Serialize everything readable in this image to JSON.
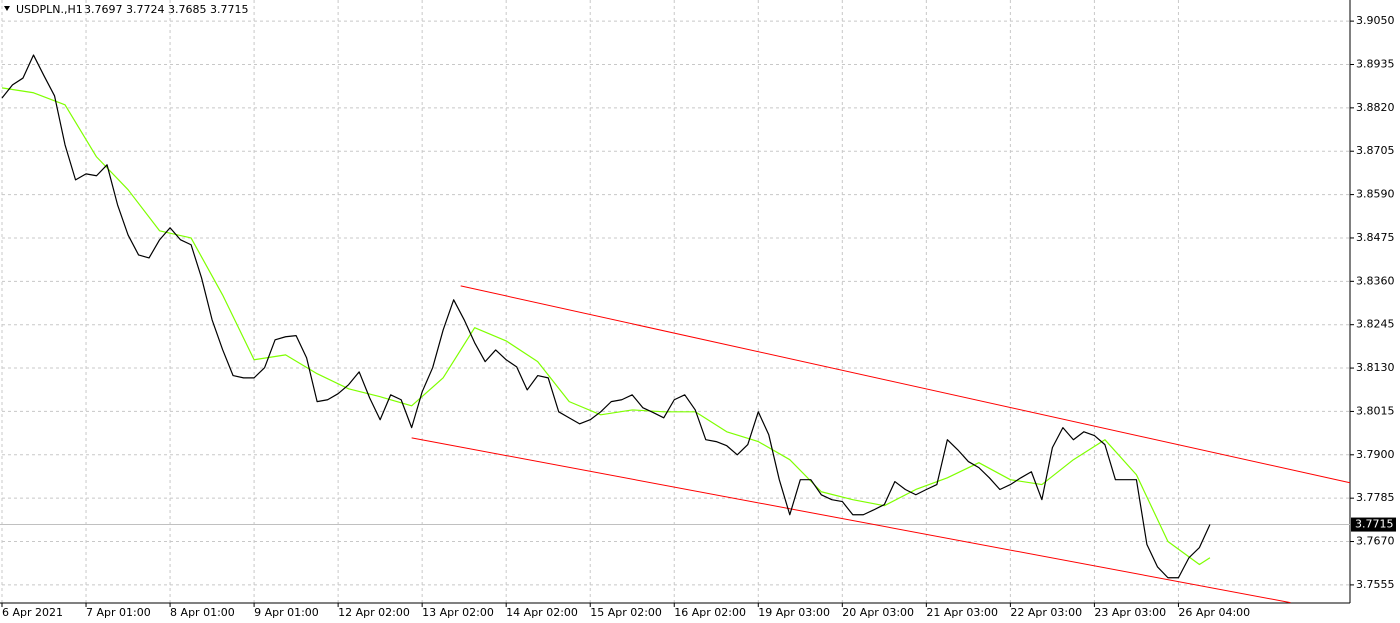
{
  "chart_data": {
    "type": "line",
    "title": "USDPLN.,H1",
    "last_bar": {
      "open": 3.7697,
      "high": 3.7724,
      "low": 3.7685,
      "close": 3.7715
    },
    "current_price": 3.7715,
    "grid": true,
    "xlim": [
      0,
      385
    ],
    "ylim": [
      3.7507,
      3.9106
    ],
    "xticks": [
      {
        "value": 0,
        "label": "6 Apr 2021"
      },
      {
        "value": 24,
        "label": "7 Apr 01:00"
      },
      {
        "value": 48,
        "label": "8 Apr 01:00"
      },
      {
        "value": 72,
        "label": "9 Apr 01:00"
      },
      {
        "value": 96,
        "label": "12 Apr 02:00"
      },
      {
        "value": 120,
        "label": "13 Apr 02:00"
      },
      {
        "value": 144,
        "label": "14 Apr 02:00"
      },
      {
        "value": 168,
        "label": "15 Apr 02:00"
      },
      {
        "value": 192,
        "label": "16 Apr 02:00"
      },
      {
        "value": 216,
        "label": "19 Apr 03:00"
      },
      {
        "value": 240,
        "label": "20 Apr 03:00"
      },
      {
        "value": 264,
        "label": "21 Apr 03:00"
      },
      {
        "value": 288,
        "label": "22 Apr 03:00"
      },
      {
        "value": 312,
        "label": "23 Apr 03:00"
      },
      {
        "value": 336,
        "label": "26 Apr 04:00"
      }
    ],
    "yticks": [
      {
        "value": 3.905,
        "label": "3.9050"
      },
      {
        "value": 3.8935,
        "label": "3.8935"
      },
      {
        "value": 3.882,
        "label": "3.8820"
      },
      {
        "value": 3.8705,
        "label": "3.8705"
      },
      {
        "value": 3.859,
        "label": "3.8590"
      },
      {
        "value": 3.8475,
        "label": "3.8475"
      },
      {
        "value": 3.836,
        "label": "3.8360"
      },
      {
        "value": 3.8245,
        "label": "3.8245"
      },
      {
        "value": 3.813,
        "label": "3.8130"
      },
      {
        "value": 3.8015,
        "label": "3.8015"
      },
      {
        "value": 3.79,
        "label": "3.7900"
      },
      {
        "value": 3.7785,
        "label": "3.7785"
      },
      {
        "value": 3.767,
        "label": "3.7670"
      },
      {
        "value": 3.7555,
        "label": "3.7555"
      }
    ],
    "series": [
      {
        "color": "#000000",
        "x": [
          0,
          3,
          6,
          9,
          12,
          15,
          18,
          21,
          24,
          27,
          30,
          33,
          36,
          39,
          42,
          45,
          48,
          51,
          54,
          57,
          60,
          63,
          66,
          69,
          72,
          75,
          78,
          81,
          84,
          87,
          90,
          93,
          96,
          99,
          102,
          105,
          108,
          111,
          114,
          117,
          120,
          123,
          126,
          129,
          132,
          135,
          138,
          141,
          144,
          147,
          150,
          153,
          156,
          159,
          162,
          165,
          168,
          171,
          174,
          177,
          180,
          183,
          186,
          189,
          192,
          195,
          198,
          201,
          204,
          207,
          210,
          213,
          216,
          219,
          222,
          225,
          228,
          231,
          234,
          237,
          240,
          243,
          246,
          249,
          252,
          255,
          258,
          261,
          264,
          267,
          270,
          273,
          276,
          279,
          282,
          285,
          288,
          291,
          294,
          297,
          300,
          303,
          306,
          309,
          312,
          315,
          318,
          321,
          324,
          327,
          330,
          333,
          336,
          339,
          342,
          345
        ],
        "values": [
          3.8846,
          3.8881,
          3.8899,
          3.896,
          3.8905,
          3.8852,
          3.8722,
          3.8629,
          3.8645,
          3.864,
          3.8669,
          3.8563,
          3.8483,
          3.843,
          3.8422,
          3.847,
          3.8502,
          3.847,
          3.8457,
          3.8369,
          3.8258,
          3.8179,
          3.811,
          3.8104,
          3.8104,
          3.8131,
          3.8205,
          3.8213,
          3.8216,
          3.8157,
          3.8041,
          3.8046,
          3.8062,
          3.8086,
          3.812,
          3.8051,
          3.7993,
          3.8059,
          3.8046,
          3.7972,
          3.8067,
          3.8131,
          3.8231,
          3.8311,
          3.8258,
          3.8197,
          3.8147,
          3.8178,
          3.8152,
          3.8133,
          3.8072,
          3.811,
          3.8104,
          3.8014,
          3.7998,
          3.7982,
          3.7993,
          3.8014,
          3.8041,
          3.8046,
          3.8059,
          3.8025,
          3.8012,
          3.7998,
          3.8046,
          3.8059,
          3.8019,
          3.794,
          3.7935,
          3.7924,
          3.79,
          3.7927,
          3.8014,
          3.7953,
          3.7834,
          3.7741,
          3.7834,
          3.7834,
          3.7794,
          3.7781,
          3.7776,
          3.7741,
          3.7741,
          3.7754,
          3.7768,
          3.7829,
          3.7808,
          3.7794,
          3.7808,
          3.7821,
          3.794,
          3.7913,
          3.7882,
          3.7866,
          3.7839,
          3.7808,
          3.7821,
          3.7839,
          3.7855,
          3.7781,
          3.7919,
          3.7972,
          3.794,
          3.7961,
          3.7951,
          3.7927,
          3.7834,
          3.7834,
          3.7834,
          3.7662,
          3.7603,
          3.7574,
          3.7574,
          3.7627,
          3.7654,
          3.7715
        ]
      },
      {
        "color": "#7fff00",
        "x": [
          0,
          9,
          18,
          27,
          36,
          45,
          54,
          63,
          72,
          81,
          90,
          99,
          108,
          117,
          126,
          135,
          144,
          153,
          162,
          171,
          180,
          189,
          198,
          207,
          216,
          225,
          234,
          243,
          252,
          261,
          270,
          279,
          288,
          297,
          306,
          315,
          324,
          333,
          342,
          345
        ],
        "values": [
          3.8873,
          3.886,
          3.8828,
          3.869,
          3.8603,
          3.8494,
          3.8475,
          3.8324,
          3.8152,
          3.8165,
          3.8115,
          3.8075,
          3.8054,
          3.803,
          3.8104,
          3.8237,
          3.8202,
          3.8147,
          3.8041,
          3.8006,
          3.8019,
          3.8014,
          3.8014,
          3.7961,
          3.7935,
          3.7887,
          3.7802,
          3.7781,
          3.7765,
          3.7808,
          3.7839,
          3.7879,
          3.7834,
          3.7821,
          3.7887,
          3.794,
          3.7847,
          3.767,
          3.7609,
          3.7627
        ]
      }
    ],
    "trendlines": [
      {
        "color": "#ff0000",
        "x": [
          131,
          385
        ],
        "values": [
          3.8348,
          3.7826
        ]
      },
      {
        "color": "#ff0000",
        "x": [
          117,
          368
        ],
        "values": [
          3.7945,
          3.7508
        ]
      }
    ]
  }
}
